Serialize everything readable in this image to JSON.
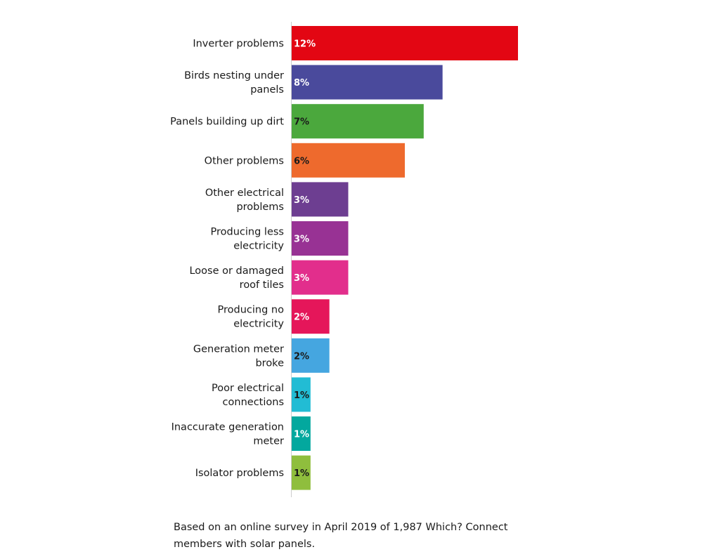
{
  "chart_data": {
    "type": "bar",
    "orientation": "horizontal",
    "categories": [
      "Inverter problems",
      "Birds nesting under panels",
      "Panels building up dirt",
      "Other problems",
      "Other electrical problems",
      "Producing less electricity",
      "Loose or damaged roof tiles",
      "Producing no electricity",
      "Generation meter broke",
      "Poor electrical connections",
      "Inaccurate generation meter",
      "Isolator problems"
    ],
    "category_lines": [
      [
        "Inverter problems"
      ],
      [
        "Birds nesting under",
        "panels"
      ],
      [
        "Panels building up dirt"
      ],
      [
        "Other problems"
      ],
      [
        "Other electrical",
        "problems"
      ],
      [
        "Producing less",
        "electricity"
      ],
      [
        "Loose or damaged",
        "roof tiles"
      ],
      [
        "Producing no",
        "electricity"
      ],
      [
        "Generation meter",
        "broke"
      ],
      [
        "Poor electrical",
        "connections"
      ],
      [
        "Inaccurate generation",
        "meter"
      ],
      [
        "Isolator problems"
      ]
    ],
    "values": [
      12,
      8,
      7,
      6,
      3,
      3,
      3,
      2,
      2,
      1,
      1,
      1
    ],
    "value_labels": [
      "12%",
      "8%",
      "7%",
      "6%",
      "3%",
      "3%",
      "3%",
      "2%",
      "2%",
      "1%",
      "1%",
      "1%"
    ],
    "colors": [
      "#e30613",
      "#4a4a9c",
      "#4ba83d",
      "#ee6a2d",
      "#6d3e91",
      "#983294",
      "#e22e8c",
      "#e5165a",
      "#45a6e0",
      "#22bcd4",
      "#03a89e",
      "#8fbe3d"
    ],
    "label_colors": [
      "#ffffff",
      "#ffffff",
      "#1a1a1a",
      "#1a1a1a",
      "#ffffff",
      "#ffffff",
      "#ffffff",
      "#ffffff",
      "#1a1a1a",
      "#1a1a1a",
      "#ffffff",
      "#1a1a1a"
    ],
    "xlim": [
      0,
      12
    ],
    "grid": false,
    "legend": "none",
    "title": "",
    "xlabel": "",
    "ylabel": ""
  },
  "footnote": "Based on an online survey in April 2019 of 1,987 Which? Connect members with solar panels."
}
